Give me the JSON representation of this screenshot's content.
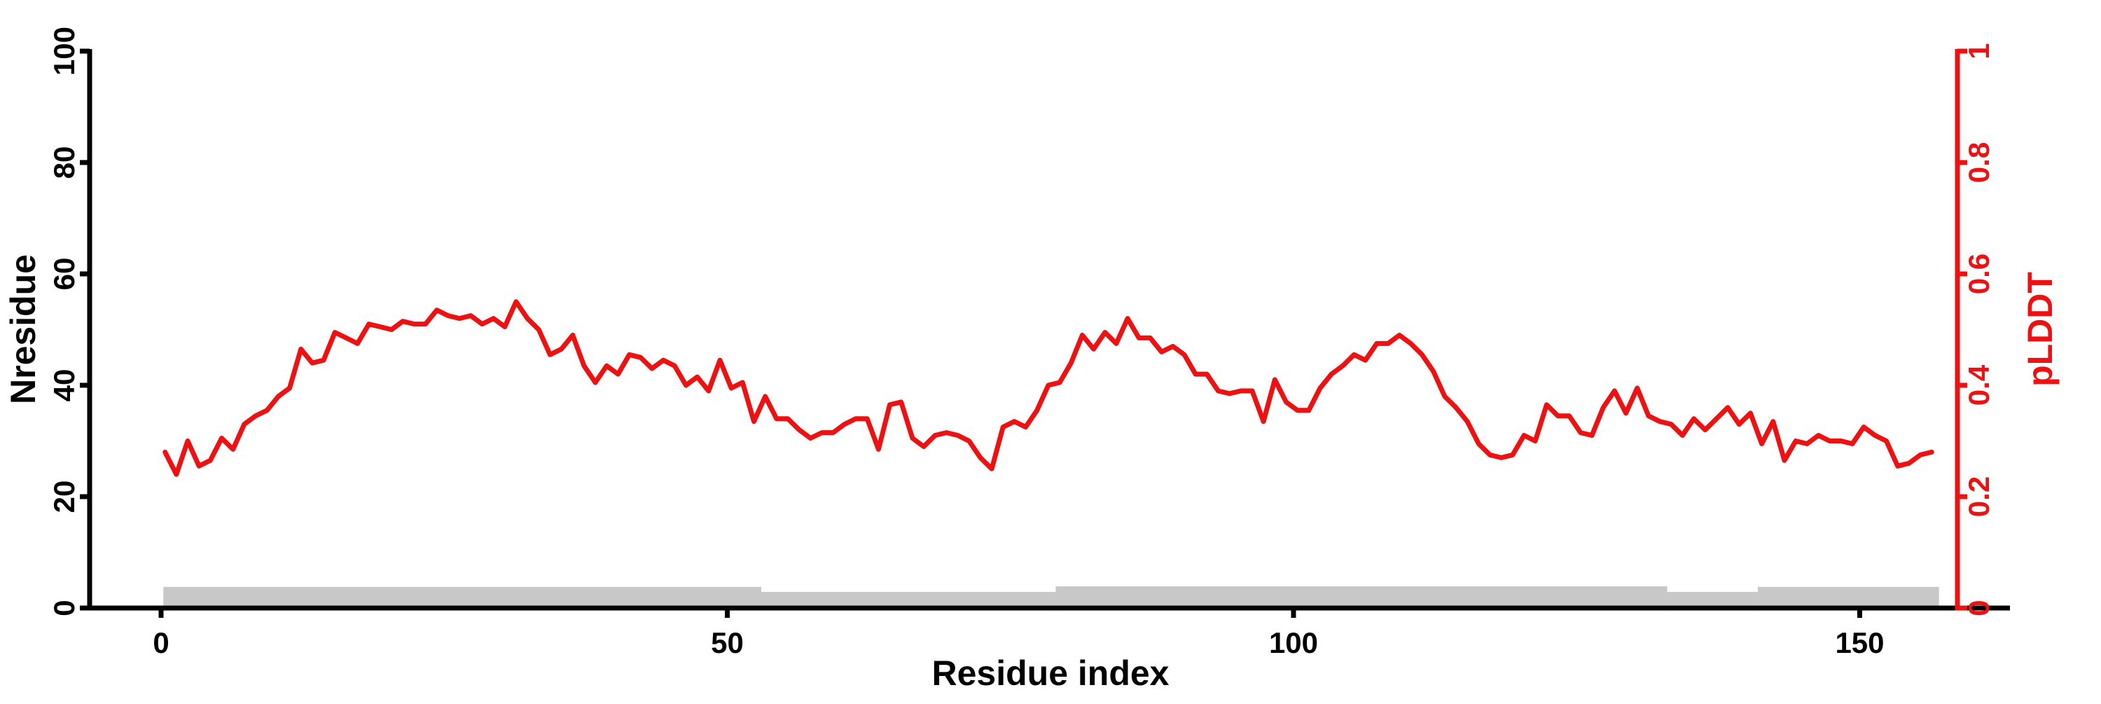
{
  "figure": {
    "background": "#ffffff",
    "title": ""
  },
  "chart_data": {
    "type": "line",
    "title": "",
    "xlabel": "Residue index",
    "grid": false,
    "legend": "none",
    "x_axis": {
      "label": "Residue index",
      "ticks": [
        0,
        50,
        100,
        150
      ],
      "range": [
        0,
        157
      ],
      "color": "#000000"
    },
    "left_axis": {
      "label": "Nresidue",
      "ticks": [
        0,
        20,
        40,
        60,
        80,
        100
      ],
      "range": [
        0,
        100
      ],
      "color": "#000000"
    },
    "right_axis": {
      "label": "pLDDT",
      "ticks": [
        "0",
        "0.2",
        "0.4",
        "0.6",
        "0.8",
        "1"
      ],
      "tick_values": [
        0,
        0.2,
        0.4,
        0.6,
        0.8,
        1
      ],
      "range": [
        0,
        1
      ],
      "color": "#ee1111"
    },
    "series": [
      {
        "name": "pLDDT",
        "axis": "right",
        "type": "line",
        "color": "#ee1111",
        "x_start": 1,
        "values": [
          0.28,
          0.24,
          0.3,
          0.255,
          0.265,
          0.305,
          0.285,
          0.33,
          0.345,
          0.355,
          0.38,
          0.395,
          0.465,
          0.44,
          0.445,
          0.495,
          0.485,
          0.475,
          0.51,
          0.505,
          0.5,
          0.515,
          0.51,
          0.51,
          0.535,
          0.525,
          0.52,
          0.525,
          0.51,
          0.52,
          0.505,
          0.55,
          0.52,
          0.5,
          0.455,
          0.465,
          0.49,
          0.435,
          0.405,
          0.435,
          0.42,
          0.455,
          0.45,
          0.43,
          0.445,
          0.435,
          0.4,
          0.415,
          0.39,
          0.445,
          0.395,
          0.405,
          0.335,
          0.38,
          0.34,
          0.34,
          0.32,
          0.305,
          0.315,
          0.315,
          0.33,
          0.34,
          0.34,
          0.285,
          0.365,
          0.37,
          0.305,
          0.29,
          0.31,
          0.315,
          0.31,
          0.3,
          0.27,
          0.25,
          0.325,
          0.335,
          0.325,
          0.355,
          0.4,
          0.405,
          0.44,
          0.49,
          0.465,
          0.495,
          0.475,
          0.52,
          0.485,
          0.485,
          0.46,
          0.47,
          0.455,
          0.42,
          0.42,
          0.39,
          0.385,
          0.39,
          0.39,
          0.335,
          0.41,
          0.37,
          0.355,
          0.355,
          0.395,
          0.42,
          0.435,
          0.455,
          0.445,
          0.475,
          0.475,
          0.49,
          0.475,
          0.455,
          0.425,
          0.38,
          0.36,
          0.335,
          0.295,
          0.275,
          0.27,
          0.275,
          0.31,
          0.3,
          0.365,
          0.345,
          0.345,
          0.315,
          0.31,
          0.36,
          0.39,
          0.35,
          0.395,
          0.345,
          0.335,
          0.33,
          0.31,
          0.34,
          0.32,
          0.34,
          0.36,
          0.33,
          0.35,
          0.295,
          0.335,
          0.265,
          0.3,
          0.295,
          0.31,
          0.3,
          0.3,
          0.295,
          0.325,
          0.31,
          0.3,
          0.255,
          0.26,
          0.275,
          0.28
        ]
      },
      {
        "name": "Nresidue",
        "axis": "left",
        "type": "bar-segments",
        "color": "#c8c8c8",
        "segments": [
          {
            "from": 0.2,
            "to": 53,
            "height": 3.8
          },
          {
            "from": 53,
            "to": 79,
            "height": 2.9
          },
          {
            "from": 79,
            "to": 133,
            "height": 3.9
          },
          {
            "from": 133,
            "to": 141,
            "height": 2.9
          },
          {
            "from": 141,
            "to": 157,
            "height": 3.8
          }
        ]
      }
    ]
  }
}
